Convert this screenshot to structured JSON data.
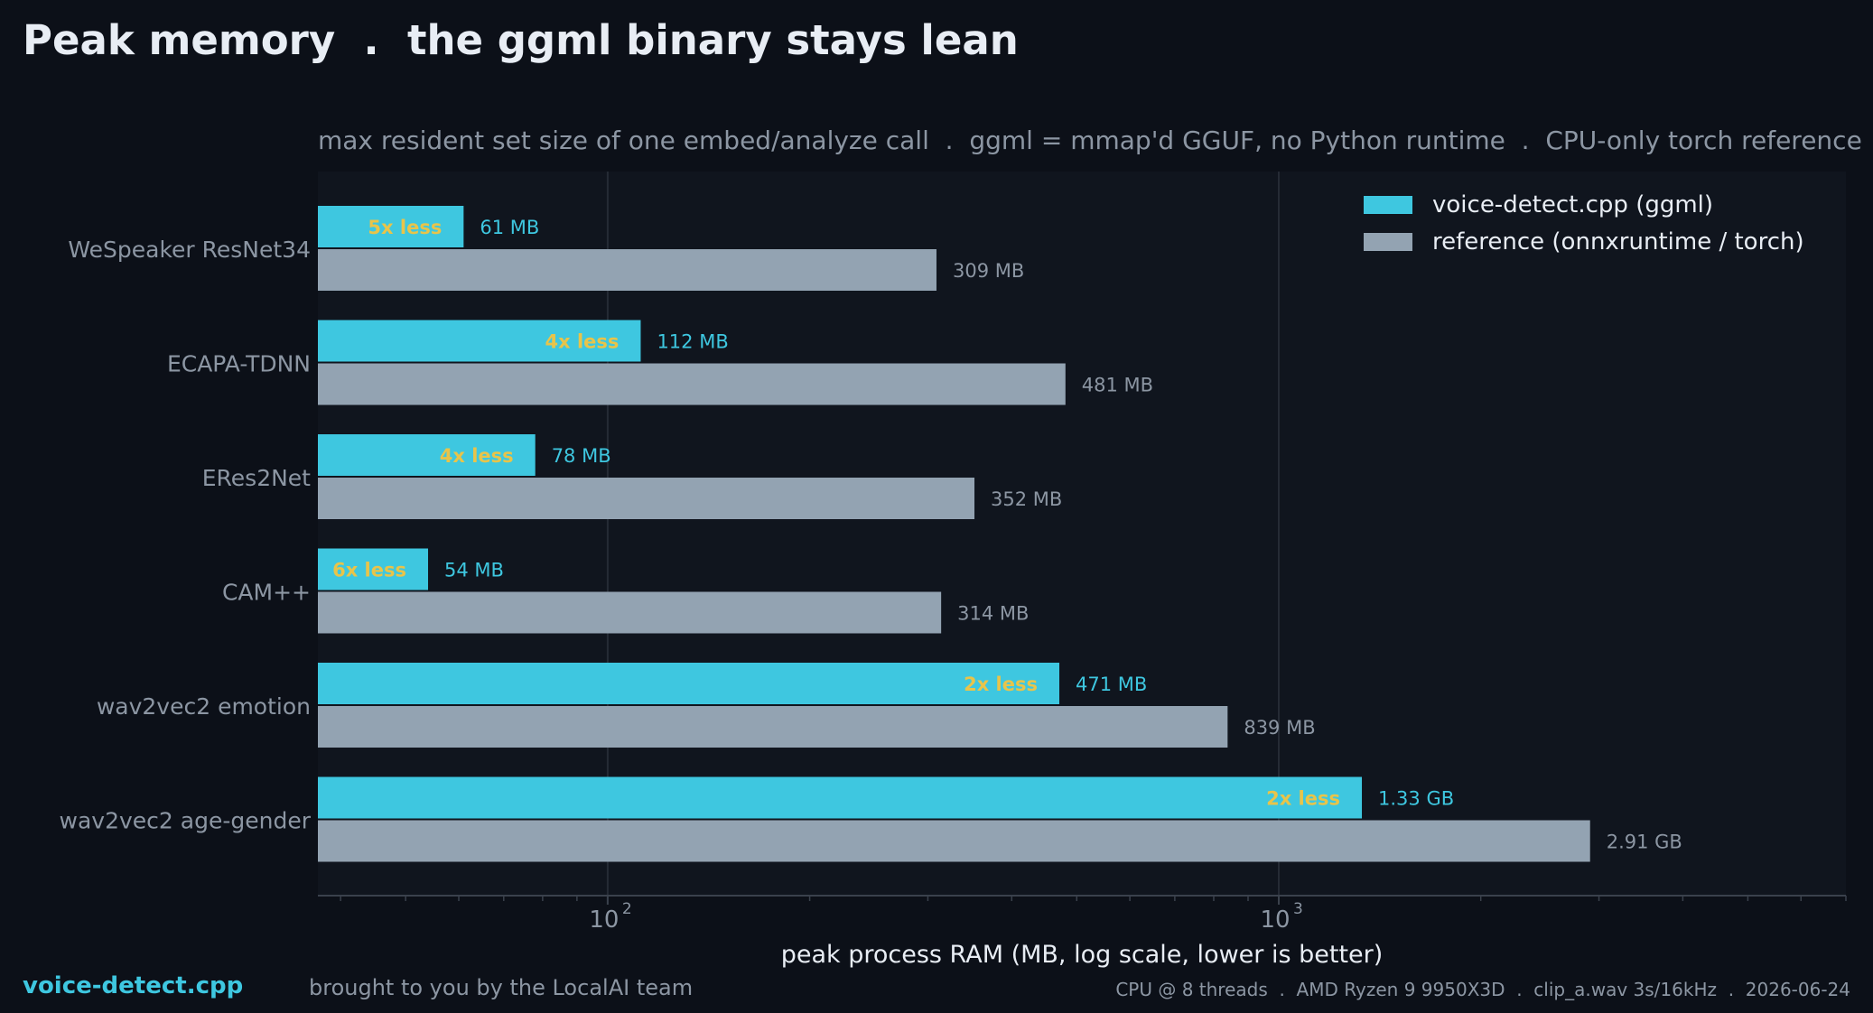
{
  "header": {
    "title": "Peak memory  .  the ggml binary stays lean",
    "subtitle": "max resident set size of one embed/analyze call  .  ggml = mmap'd GGUF, no Python runtime  .  CPU-only torch reference"
  },
  "footer": {
    "brand": "voice-detect.cpp",
    "credit": "brought to you by the LocalAI team",
    "meta": "CPU @ 8 threads  .  AMD Ryzen 9 9950X3D  .  clip_a.wav 3s/16kHz  .  2026-06-24"
  },
  "chart_data": {
    "type": "bar",
    "orientation": "horizontal",
    "scale": "log",
    "xlabel": "peak process RAM  (MB, log scale, lower is better)",
    "xlim": [
      37,
      7000
    ],
    "grid": "x-major",
    "legend_position": "top-right",
    "categories": [
      "WeSpeaker ResNet34",
      "ECAPA-TDNN",
      "ERes2Net",
      "CAM++",
      "wav2vec2 emotion",
      "wav2vec2 age-gender"
    ],
    "series": [
      {
        "name": "voice-detect.cpp (ggml)",
        "color": "#3ec7e0",
        "values": [
          61,
          112,
          78,
          54,
          471,
          1330
        ],
        "labels": [
          "61 MB",
          "112 MB",
          "78 MB",
          "54 MB",
          "471 MB",
          "1.33 GB"
        ],
        "badges": [
          "5x less",
          "4x less",
          "4x less",
          "6x less",
          "2x less",
          "2x less"
        ]
      },
      {
        "name": "reference (onnxruntime / torch)",
        "color": "#93a3b2",
        "values": [
          309,
          481,
          352,
          314,
          839,
          2910
        ],
        "labels": [
          "309 MB",
          "481 MB",
          "352 MB",
          "314 MB",
          "839 MB",
          "2.91 GB"
        ]
      }
    ],
    "ticks": [
      {
        "value": 100,
        "base": "10",
        "exp": "2"
      },
      {
        "value": 1000,
        "base": "10",
        "exp": "3"
      }
    ],
    "colors": {
      "badge": "#e8c44a",
      "plot_bg": "#10151e",
      "grid": "#252b35",
      "axis": "#3a414c",
      "category_text": "#8c96a3",
      "legend_text": "#e8edf4"
    }
  }
}
